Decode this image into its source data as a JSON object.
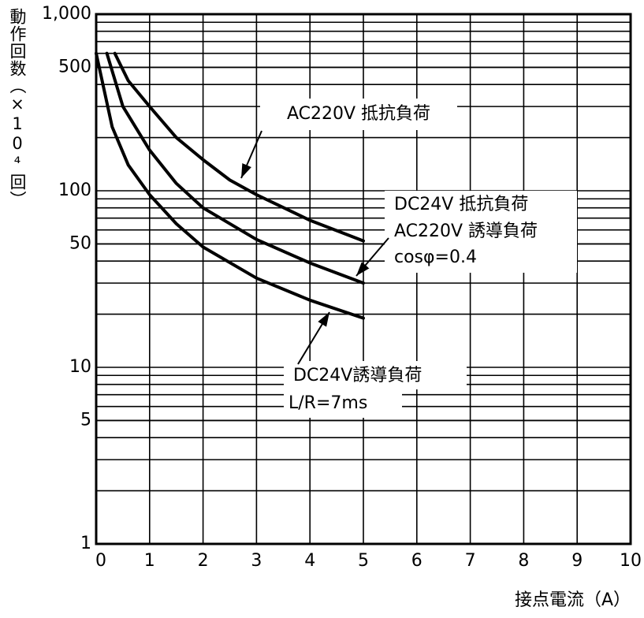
{
  "chart_data": {
    "type": "line",
    "y_label": "動作回数（×10⁴回）",
    "x_label": "接点電流（A）",
    "log_scale_y": true,
    "grid": true,
    "xlim": [
      0,
      10
    ],
    "xticks": [
      0,
      1,
      2,
      3,
      4,
      5,
      6,
      7,
      8,
      9,
      10
    ],
    "ylim": [
      1,
      1000
    ],
    "yticks": [
      1,
      5,
      10,
      50,
      100,
      500,
      {
        "value": 1000,
        "label": "1,000"
      }
    ],
    "series": [
      {
        "color": "#000000",
        "x": [
          0.35,
          0.6,
          1,
          1.5,
          2,
          2.5,
          3,
          4,
          5
        ],
        "values": [
          600,
          420,
          300,
          200,
          150,
          115,
          95,
          68,
          52
        ]
      },
      {
        "color": "#000000",
        "x": [
          0.2,
          0.5,
          1,
          1.5,
          2,
          3,
          4,
          5
        ],
        "values": [
          600,
          300,
          170,
          110,
          80,
          53,
          39,
          30
        ]
      },
      {
        "color": "#000000",
        "x": [
          0,
          0.3,
          0.6,
          1,
          1.5,
          2,
          3,
          4,
          5
        ],
        "values": [
          600,
          230,
          140,
          95,
          65,
          48,
          32,
          24,
          19
        ]
      }
    ],
    "annotations": [
      "AC220V 抵抗負荷",
      "DC24V 抵抗負荷",
      "AC220V 誘導負荷",
      "cosφ=0.4",
      "DC24V誘導負荷",
      "L/R=7ms"
    ]
  }
}
